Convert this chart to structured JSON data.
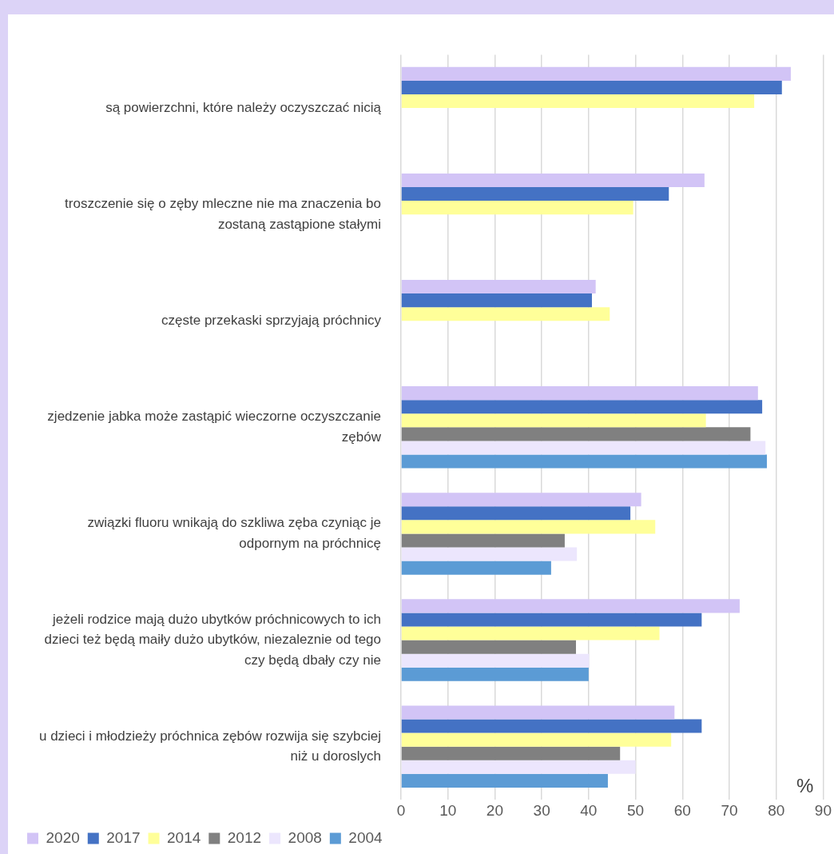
{
  "chart_data": {
    "type": "bar",
    "orientation": "horizontal",
    "xlabel": "%",
    "categories": [
      "są powierzchni, które należy oczyszczać nicią",
      "troszczenie się o zęby mleczne nie ma znaczenia bo zostaną zastąpione stałymi",
      "częste przekaski sprzyjają próchnicy",
      "zjedzenie jabka może zastąpić wieczorne oczyszczanie zębów",
      "związki fluoru wnikają do szkliwa zęba czyniąc je odpornym na próchnicę",
      "jeżeli rodzice mają dużo ubytków próchnicowych to ich dzieci też będą maiły dużo ubytków, niezaleznie od tego czy będą dbały czy nie",
      "u dzieci i młodzieży próchnica zębów rozwija się szybciej niż u doroslych"
    ],
    "series": [
      {
        "name": "2020",
        "color": "#d2c4f6",
        "values": [
          83.1,
          64.7,
          41.5,
          76.1,
          51.2,
          72.2,
          58.3
        ]
      },
      {
        "name": "2017",
        "color": "#4472c4",
        "values": [
          81.2,
          57.1,
          40.7,
          77.0,
          48.9,
          64.1,
          64.1
        ]
      },
      {
        "name": "2014",
        "color": "#ffff99",
        "values": [
          75.3,
          49.5,
          44.5,
          65.0,
          54.2,
          55.1,
          57.6
        ]
      },
      {
        "name": "2012",
        "color": "#808080",
        "values": [
          null,
          null,
          null,
          74.5,
          34.9,
          37.3,
          46.7
        ]
      },
      {
        "name": "2008",
        "color": "#ece6fd",
        "values": [
          null,
          null,
          null,
          77.7,
          37.5,
          40.1,
          50.0
        ]
      },
      {
        "name": "2004",
        "color": "#5b9bd5",
        "values": [
          null,
          null,
          null,
          78.0,
          32.0,
          40.0,
          44.1
        ]
      }
    ],
    "xlim": [
      0,
      90
    ],
    "xticks": [
      0,
      10,
      20,
      30,
      40,
      50,
      60,
      70,
      80,
      90
    ],
    "grid": "x",
    "legend": "bottom left"
  }
}
